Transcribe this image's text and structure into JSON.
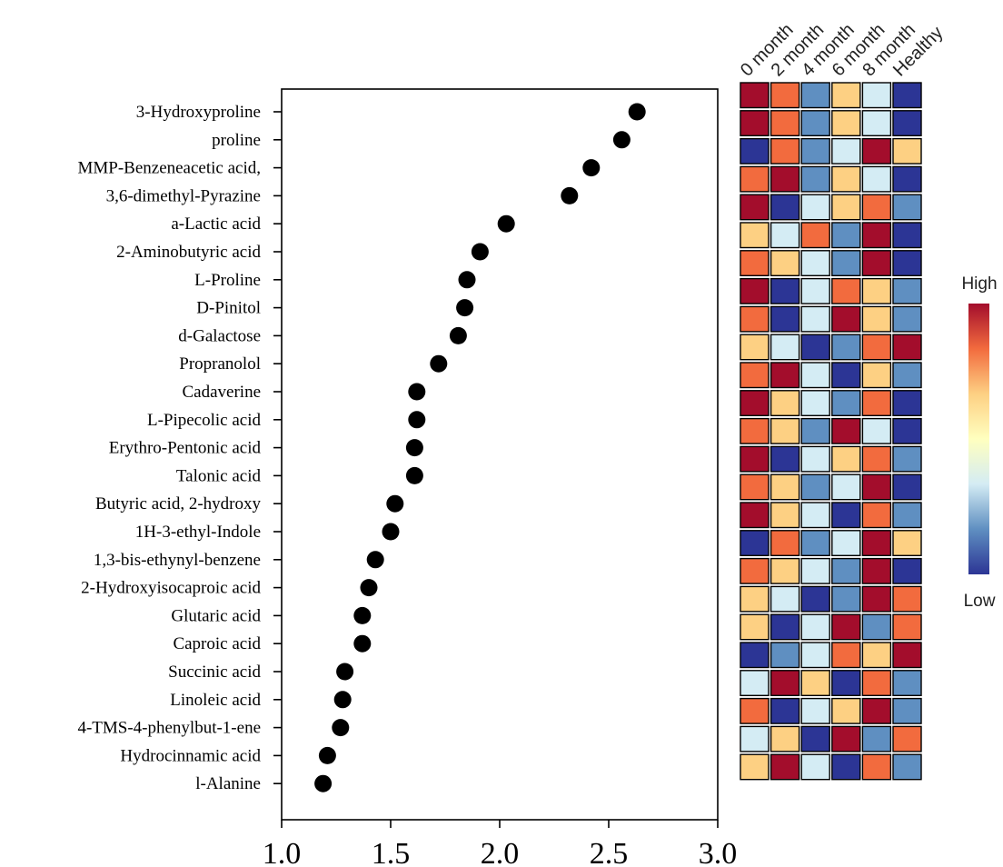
{
  "chart_data": [
    {
      "type": "scatter",
      "title": "",
      "xlabel": "",
      "ylabel": "",
      "xlim": [
        1.0,
        3.0
      ],
      "xticks": [
        "1.0",
        "1.5",
        "2.0",
        "2.5",
        "3.0"
      ],
      "grid": false,
      "marker_color": "#000000",
      "categories": [
        "3-Hydroxyproline",
        "proline",
        "MMP-Benzeneacetic acid,",
        "3,6-dimethyl-Pyrazine",
        "a-Lactic acid",
        "2-Aminobutyric acid",
        "L-Proline",
        "D-Pinitol",
        "d-Galactose",
        "Propranolol",
        "Cadaverine",
        "L-Pipecolic acid",
        "Erythro-Pentonic acid",
        "Talonic acid",
        "Butyric acid, 2-hydroxy",
        "1H-3-ethyl-Indole",
        "1,3-bis-ethynyl-benzene",
        "2-Hydroxyisocaproic acid",
        "Glutaric acid",
        "Caproic acid",
        "Succinic acid",
        "Linoleic acid",
        "4-TMS-4-phenylbut-1-ene",
        "Hydrocinnamic acid",
        "l-Alanine"
      ],
      "values": [
        2.63,
        2.56,
        2.42,
        2.32,
        2.03,
        1.91,
        1.85,
        1.84,
        1.81,
        1.72,
        1.62,
        1.62,
        1.61,
        1.61,
        1.52,
        1.5,
        1.43,
        1.4,
        1.37,
        1.37,
        1.29,
        1.28,
        1.27,
        1.21,
        1.19
      ]
    },
    {
      "type": "heatmap",
      "title": "",
      "columns": [
        "0 month",
        "2 month",
        "4 month",
        "6 month",
        "8 month",
        "Healthy"
      ],
      "rows": [
        "3-Hydroxyproline",
        "proline",
        "MMP-Benzeneacetic acid,",
        "3,6-dimethyl-Pyrazine",
        "a-Lactic acid",
        "2-Aminobutyric acid",
        "L-Proline",
        "D-Pinitol",
        "d-Galactose",
        "Propranolol",
        "Cadaverine",
        "L-Pipecolic acid",
        "Erythro-Pentonic acid",
        "Talonic acid",
        "Butyric acid, 2-hydroxy",
        "1H-3-ethyl-Indole",
        "1,3-bis-ethynyl-benzene",
        "2-Hydroxyisocaproic acid",
        "Glutaric acid",
        "Caproic acid",
        "Succinic acid",
        "Linoleic acid",
        "4-TMS-4-phenylbut-1-ene",
        "Hydrocinnamic acid",
        "l-Alanine"
      ],
      "scale_levels": 6,
      "palette": [
        "#2c3595",
        "#5f8fc1",
        "#d4ecf4",
        "#fdd083",
        "#f26b3e",
        "#a30d2c"
      ],
      "values": [
        [
          6,
          5,
          2,
          4,
          3,
          1
        ],
        [
          6,
          5,
          2,
          4,
          3,
          1
        ],
        [
          1,
          5,
          2,
          3,
          6,
          4
        ],
        [
          5,
          6,
          2,
          4,
          3,
          1
        ],
        [
          6,
          1,
          3,
          4,
          5,
          2
        ],
        [
          4,
          3,
          5,
          2,
          6,
          1
        ],
        [
          5,
          4,
          3,
          2,
          6,
          1
        ],
        [
          6,
          1,
          3,
          5,
          4,
          2
        ],
        [
          5,
          1,
          3,
          6,
          4,
          2
        ],
        [
          4,
          3,
          1,
          2,
          5,
          6
        ],
        [
          5,
          6,
          3,
          1,
          4,
          2
        ],
        [
          6,
          4,
          3,
          2,
          5,
          1
        ],
        [
          5,
          4,
          2,
          6,
          3,
          1
        ],
        [
          6,
          1,
          3,
          4,
          5,
          2
        ],
        [
          5,
          4,
          2,
          3,
          6,
          1
        ],
        [
          6,
          4,
          3,
          1,
          5,
          2
        ],
        [
          1,
          5,
          2,
          3,
          6,
          4
        ],
        [
          5,
          4,
          3,
          2,
          6,
          1
        ],
        [
          4,
          3,
          1,
          2,
          6,
          5
        ],
        [
          4,
          1,
          3,
          6,
          2,
          5
        ],
        [
          1,
          2,
          3,
          5,
          4,
          6
        ],
        [
          3,
          6,
          4,
          1,
          5,
          2
        ],
        [
          5,
          1,
          3,
          4,
          6,
          2
        ],
        [
          3,
          4,
          1,
          6,
          2,
          5
        ],
        [
          4,
          6,
          3,
          1,
          5,
          2
        ]
      ],
      "colorbar": {
        "high_label": "High",
        "low_label": "Low",
        "gradient": [
          "#a30d2c",
          "#f26b3e",
          "#fdd083",
          "#ffffbf",
          "#d4ecf4",
          "#5f8fc1",
          "#2c3595"
        ]
      }
    }
  ]
}
